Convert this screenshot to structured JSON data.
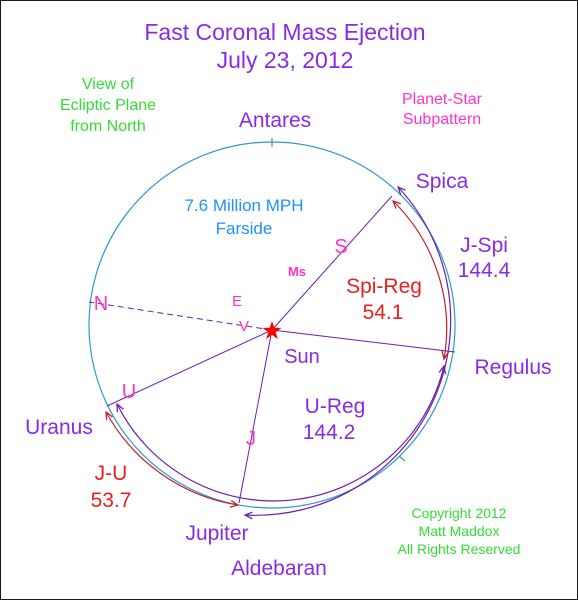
{
  "title": {
    "line1": "Fast Coronal Mass Ejection",
    "line2": "July 23, 2012"
  },
  "view_note": {
    "line1": "View of",
    "line2": "Ecliptic Plane",
    "line3": "from North"
  },
  "pattern_note": {
    "line1": "Planet-Star",
    "line2": "Subpattern"
  },
  "speed_note": {
    "line1": "7.6 Million MPH",
    "line2": "Farside"
  },
  "copyright": {
    "line1": "Copyright 2012",
    "line2": "Matt Maddox",
    "line3": "All Rights Reserved"
  },
  "stars": {
    "antares": "Antares",
    "spica": "Spica",
    "regulus": "Regulus",
    "aldebaran": "Aldebaran"
  },
  "center_label": "Sun",
  "planets": {
    "saturn": "S",
    "mars": "Ms",
    "earth": "E",
    "venus": "V",
    "neptune": "N",
    "uranus_symbol": "U",
    "jupiter_symbol": "J",
    "uranus": "Uranus",
    "jupiter": "Jupiter"
  },
  "angles": {
    "j_spi": {
      "label": "J-Spi",
      "value": "144.4"
    },
    "spi_reg": {
      "label": "Spi-Reg",
      "value": "54.1"
    },
    "u_reg": {
      "label": "U-Reg",
      "value": "144.2"
    },
    "j_u": {
      "label": "J-U",
      "value": "53.7"
    }
  },
  "colors": {
    "title": "#8a2be2",
    "green_text": "#33dd33",
    "magenta": "#ff33cc",
    "blue": "#1e90ff",
    "purple": "#8a2be2",
    "red": "#e82020",
    "circle": "#3399cc",
    "line": "#6a1fb0",
    "sun": "#ff0000"
  }
}
